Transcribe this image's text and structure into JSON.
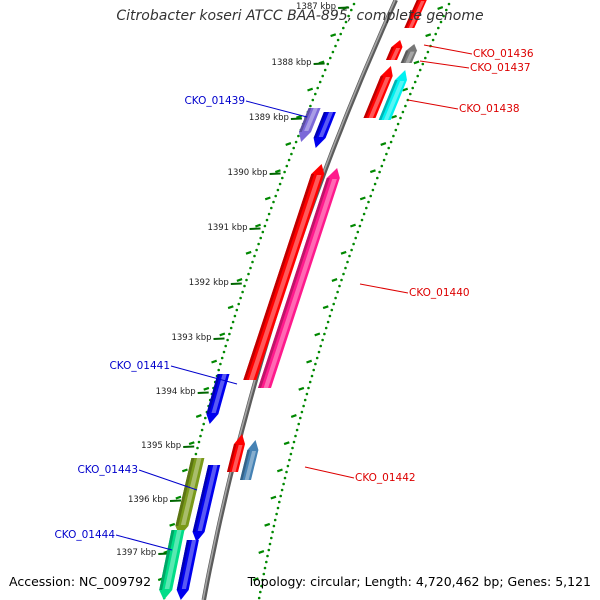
{
  "title": "Citrobacter koseri ATCC BAA-895, complete genome",
  "footer": {
    "accession": "Accession: NC_009792",
    "summary": "Topology: circular; Length: 4,720,462 bp; Genes: 5,121"
  },
  "scale_labels": [
    "1387 kbp",
    "1388 kbp",
    "1389 kbp",
    "1390 kbp",
    "1391 kbp",
    "1392 kbp",
    "1393 kbp",
    "1394 kbp",
    "1395 kbp",
    "1396 kbp",
    "1397 kbp"
  ],
  "genes": [
    {
      "id": "g0",
      "label": "",
      "strand": "forward",
      "color": "#ff0000"
    },
    {
      "id": "g1",
      "label": "CKO_01436",
      "strand": "forward",
      "color": "#ff0000"
    },
    {
      "id": "g2",
      "label": "CKO_01437",
      "strand": "forward",
      "color": "#777777"
    },
    {
      "id": "g3",
      "label": "CKO_01438",
      "strand": "forward",
      "color": "#ff0000"
    },
    {
      "id": "g4",
      "label": "",
      "strand": "forward",
      "color": "#00f0f0"
    },
    {
      "id": "g5",
      "label": "",
      "strand": "reverse",
      "color": "#7b68d8"
    },
    {
      "id": "g6",
      "label": "CKO_01439",
      "strand": "reverse",
      "color": "#0000ee"
    },
    {
      "id": "g7",
      "label": "",
      "strand": "forward",
      "color": "#ff0000"
    },
    {
      "id": "g8",
      "label": "CKO_01440",
      "strand": "forward",
      "color": "#ff1a8c"
    },
    {
      "id": "g9",
      "label": "CKO_01441",
      "strand": "reverse",
      "color": "#0000ee"
    },
    {
      "id": "g10",
      "label": "",
      "strand": "forward",
      "color": "#ff0000"
    },
    {
      "id": "g11",
      "label": "CKO_01442",
      "strand": "forward",
      "color": "#4682b4"
    },
    {
      "id": "g12",
      "label": "CKO_01443",
      "strand": "reverse",
      "color": "#7a9a1a"
    },
    {
      "id": "g13",
      "label": "",
      "strand": "reverse",
      "color": "#0000ee"
    },
    {
      "id": "g14",
      "label": "CKO_01444",
      "strand": "reverse",
      "color": "#00dd88"
    },
    {
      "id": "g15",
      "label": "",
      "strand": "reverse",
      "color": "#0000ee"
    }
  ],
  "colors": {
    "forward_label": "#dd0000",
    "reverse_label": "#0000cc",
    "backbone": "#888888",
    "gc_dots": "#008800"
  }
}
